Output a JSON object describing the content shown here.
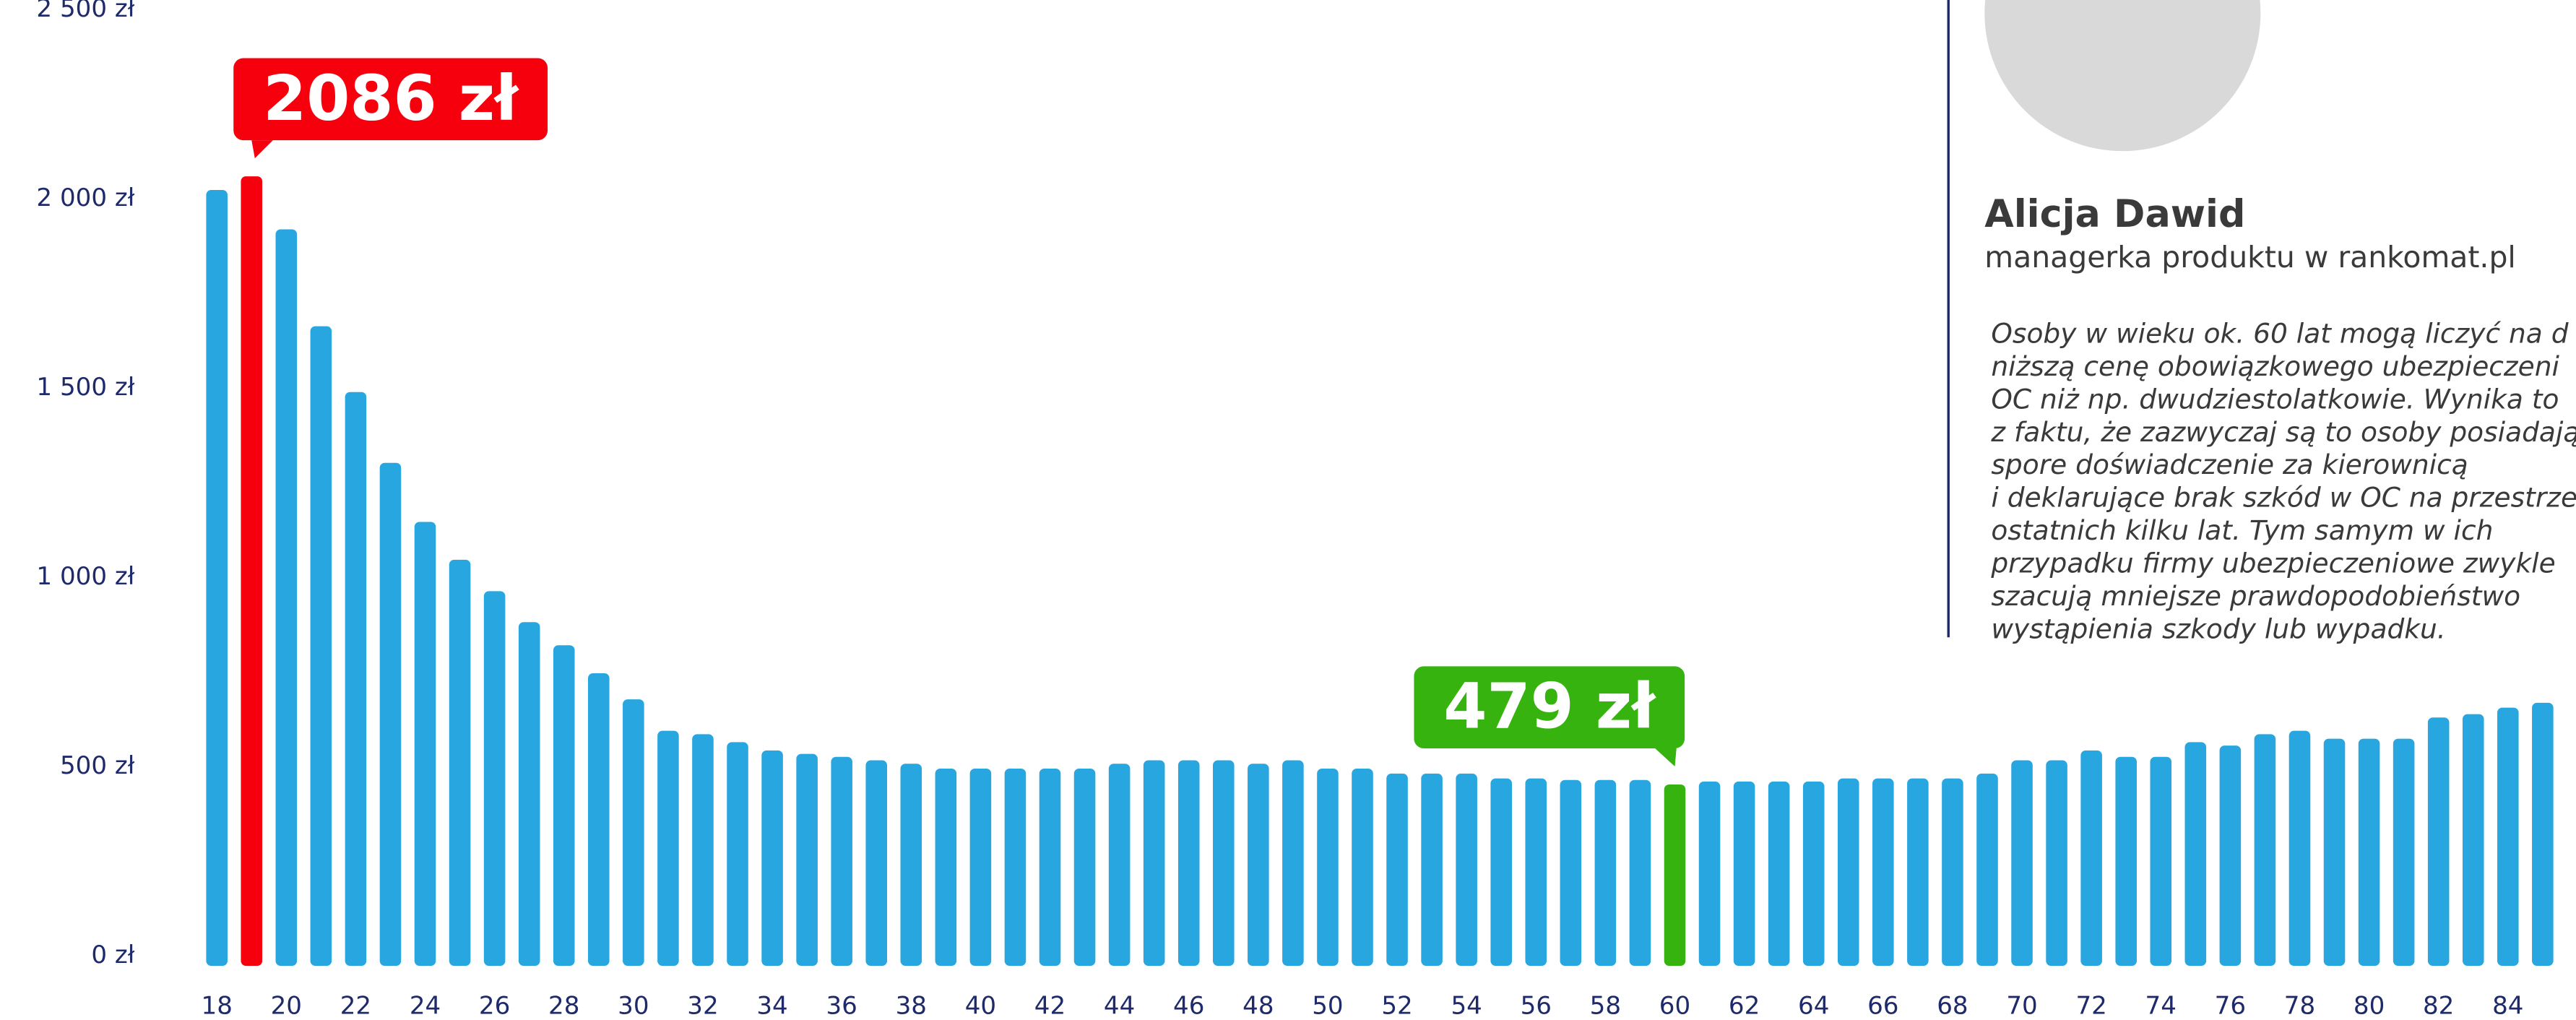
{
  "chart_data": {
    "type": "bar",
    "categories": [
      18,
      null,
      20,
      null,
      22,
      null,
      24,
      null,
      26,
      null,
      28,
      null,
      30,
      null,
      32,
      null,
      34,
      null,
      36,
      null,
      38,
      null,
      40,
      null,
      42,
      null,
      44,
      null,
      46,
      null,
      48,
      null,
      50,
      null,
      52,
      null,
      54,
      null,
      56,
      null,
      58,
      null,
      60,
      null,
      62,
      null,
      64,
      null,
      66,
      null,
      68,
      null,
      70,
      null,
      72,
      null,
      74,
      null,
      76,
      null,
      78,
      null,
      80,
      null,
      82,
      null,
      84,
      null
    ],
    "values": [
      2050,
      2086,
      1946,
      1690,
      1516,
      1329,
      1173,
      1073,
      990,
      908,
      847,
      773,
      704,
      621,
      612,
      591,
      569,
      560,
      552,
      543,
      534,
      521,
      521,
      521,
      521,
      521,
      534,
      543,
      543,
      543,
      534,
      543,
      521,
      521,
      508,
      508,
      508,
      495,
      495,
      491,
      491,
      491,
      479,
      487,
      487,
      487,
      487,
      495,
      495,
      495,
      495,
      508,
      543,
      543,
      569,
      552,
      552,
      591,
      582,
      612,
      621,
      600,
      600,
      600,
      656,
      665,
      682,
      695
    ],
    "value_labels": [
      null,
      "2086 zł",
      null,
      null,
      null,
      null,
      null,
      null,
      null,
      null,
      null,
      null,
      null,
      null,
      null,
      null,
      null,
      null,
      null,
      null,
      null,
      null,
      null,
      null,
      null,
      null,
      null,
      null,
      null,
      null,
      null,
      null,
      null,
      null,
      null,
      null,
      null,
      null,
      null,
      null,
      null,
      null,
      "479 zł",
      null,
      null,
      null,
      null,
      null,
      null,
      null,
      null,
      null,
      null,
      null,
      null,
      null,
      null,
      null,
      null,
      null,
      null,
      null,
      null,
      null,
      null,
      null,
      null,
      null
    ],
    "color": "#27a6e0",
    "highlight_colors": {
      "1": "#f5000c",
      "42": "#36b30f"
    },
    "ylim": [
      0,
      2500
    ],
    "yticks": [
      {
        "value": 0,
        "label": "0 zł"
      },
      {
        "value": 500,
        "label": "500 zł"
      },
      {
        "value": 1000,
        "label": "1 000 zł"
      },
      {
        "value": 1500,
        "label": "1 500 zł"
      },
      {
        "value": 2000,
        "label": "2 000 zł"
      },
      {
        "value": 2500,
        "label": "2 500 zł"
      }
    ],
    "grid": false
  },
  "profile": {
    "name": "Alicja Dawid",
    "role": "managerka produktu w rankomat.pl",
    "quote_lines": [
      "Osoby w wieku ok. 60 lat mogą liczyć na d",
      "niższą cenę obowiązkowego ubezpieczeni",
      "OC niż np. dwudziestolatkowie. Wynika to",
      "z faktu, że zazwyczaj są to osoby posiadają",
      "spore doświadczenie za kierownicą",
      "i deklarujące brak szkód w OC na przestrze",
      "ostatnich kilku lat. Tym samym w ich",
      "przypadku firmy ubezpieczeniowe zwykle",
      "szacują mniejsze prawdopodobieństwo",
      "wystąpienia szkody lub wypadku."
    ]
  }
}
